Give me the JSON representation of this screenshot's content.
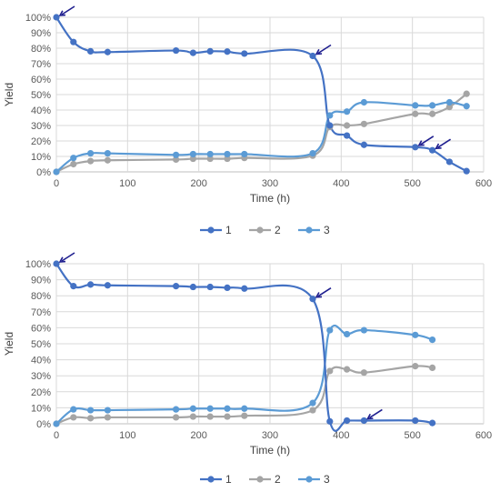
{
  "chart_data": [
    {
      "type": "line",
      "title": "",
      "xlabel": "Time (h)",
      "ylabel": "Yield",
      "xlim": [
        0,
        600
      ],
      "ylim": [
        0,
        100
      ],
      "xticks": [
        "0",
        "100",
        "200",
        "300",
        "400",
        "500",
        "600"
      ],
      "yticks": [
        "0%",
        "10%",
        "20%",
        "30%",
        "40%",
        "50%",
        "60%",
        "70%",
        "80%",
        "90%",
        "100%"
      ],
      "grid": true,
      "legend": "bottom",
      "series": [
        {
          "name": "1",
          "color": "#4472C4",
          "points": [
            [
              0,
              100
            ],
            [
              24,
              84
            ],
            [
              48,
              78
            ],
            [
              72,
              77.5
            ],
            [
              168,
              78.5
            ],
            [
              192,
              77
            ],
            [
              216,
              78
            ],
            [
              240,
              77.8
            ],
            [
              264,
              76.5
            ],
            [
              360,
              75
            ],
            [
              384,
              30
            ],
            [
              408,
              23.5
            ],
            [
              432,
              17.5
            ],
            [
              504,
              16
            ],
            [
              528,
              14
            ],
            [
              552,
              6.5
            ],
            [
              576,
              0.5
            ]
          ]
        },
        {
          "name": "2",
          "color": "#A5A5A5",
          "points": [
            [
              0,
              0
            ],
            [
              24,
              5
            ],
            [
              48,
              7
            ],
            [
              72,
              7.5
            ],
            [
              168,
              8
            ],
            [
              192,
              8.5
            ],
            [
              216,
              8.5
            ],
            [
              240,
              8.5
            ],
            [
              264,
              9
            ],
            [
              360,
              10.5
            ],
            [
              384,
              29
            ],
            [
              408,
              30
            ],
            [
              432,
              31
            ],
            [
              504,
              37.5
            ],
            [
              528,
              37.5
            ],
            [
              552,
              42
            ],
            [
              576,
              50.5
            ]
          ]
        },
        {
          "name": "3",
          "color": "#5B9BD5",
          "points": [
            [
              0,
              0
            ],
            [
              24,
              9
            ],
            [
              48,
              12
            ],
            [
              72,
              12
            ],
            [
              168,
              11
            ],
            [
              192,
              11.5
            ],
            [
              216,
              11.5
            ],
            [
              240,
              11.5
            ],
            [
              264,
              11.5
            ],
            [
              360,
              12
            ],
            [
              384,
              36.5
            ],
            [
              408,
              39
            ],
            [
              432,
              45
            ],
            [
              504,
              43
            ],
            [
              528,
              43
            ],
            [
              552,
              45
            ],
            [
              576,
              42.5
            ]
          ]
        }
      ],
      "arrows_at": [
        [
          0,
          100
        ],
        [
          360,
          75
        ],
        [
          504,
          16
        ],
        [
          528,
          14
        ]
      ]
    },
    {
      "type": "line",
      "title": "",
      "xlabel": "Time (h)",
      "ylabel": "Yield",
      "xlim": [
        0,
        600
      ],
      "ylim": [
        0,
        100
      ],
      "xticks": [
        "0",
        "100",
        "200",
        "300",
        "400",
        "500",
        "600"
      ],
      "yticks": [
        "0%",
        "10%",
        "20%",
        "30%",
        "40%",
        "50%",
        "60%",
        "70%",
        "80%",
        "90%",
        "100%"
      ],
      "grid": true,
      "legend": "bottom",
      "series": [
        {
          "name": "1",
          "color": "#4472C4",
          "points": [
            [
              0,
              100
            ],
            [
              24,
              86
            ],
            [
              48,
              87
            ],
            [
              72,
              86.5
            ],
            [
              168,
              86
            ],
            [
              192,
              85.5
            ],
            [
              216,
              85.5
            ],
            [
              240,
              85
            ],
            [
              264,
              84.5
            ],
            [
              360,
              78
            ],
            [
              384,
              1.5
            ],
            [
              408,
              2
            ],
            [
              432,
              2
            ],
            [
              504,
              2
            ],
            [
              528,
              0.5
            ]
          ]
        },
        {
          "name": "2",
          "color": "#A5A5A5",
          "points": [
            [
              0,
              0
            ],
            [
              24,
              4
            ],
            [
              48,
              3.5
            ],
            [
              72,
              4
            ],
            [
              168,
              4
            ],
            [
              192,
              4.5
            ],
            [
              216,
              4.5
            ],
            [
              240,
              4.5
            ],
            [
              264,
              5
            ],
            [
              360,
              8.5
            ],
            [
              384,
              33
            ],
            [
              408,
              34
            ],
            [
              432,
              32
            ],
            [
              504,
              36
            ],
            [
              528,
              35
            ]
          ]
        },
        {
          "name": "3",
          "color": "#5B9BD5",
          "points": [
            [
              0,
              0
            ],
            [
              24,
              9
            ],
            [
              48,
              8.5
            ],
            [
              72,
              8.5
            ],
            [
              168,
              9
            ],
            [
              192,
              9.5
            ],
            [
              216,
              9.5
            ],
            [
              240,
              9.5
            ],
            [
              264,
              9.5
            ],
            [
              360,
              13
            ],
            [
              384,
              58.5
            ],
            [
              408,
              56
            ],
            [
              432,
              58.5
            ],
            [
              504,
              55.5
            ],
            [
              528,
              52.5
            ]
          ]
        }
      ],
      "arrows_at": [
        [
          0,
          100
        ],
        [
          360,
          78
        ],
        [
          432,
          2
        ]
      ]
    }
  ]
}
